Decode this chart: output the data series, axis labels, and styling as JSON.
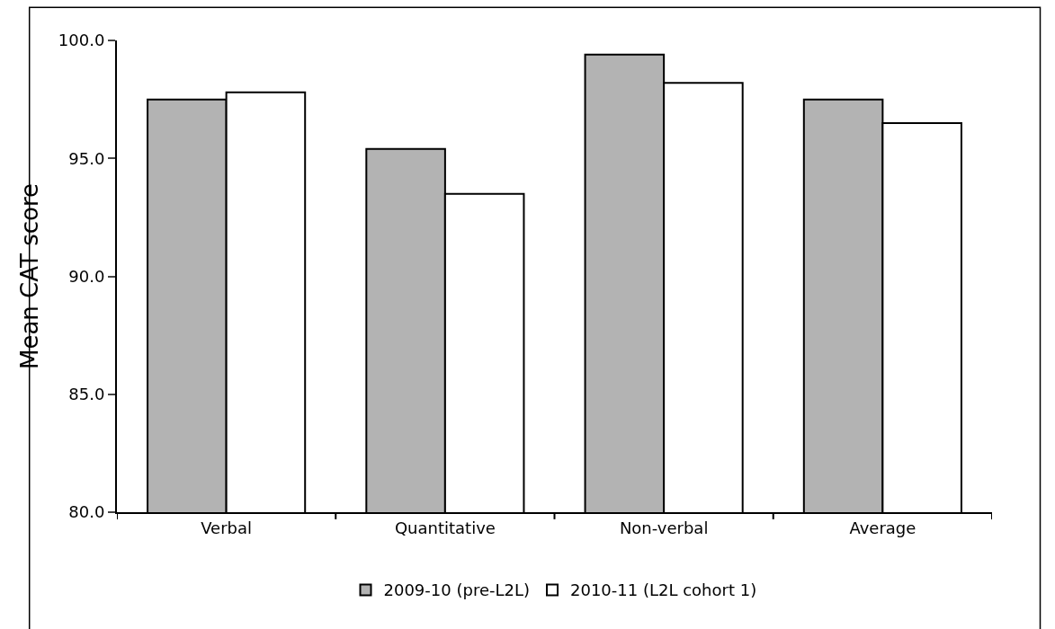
{
  "chart_data": {
    "type": "bar",
    "ylabel": "Mean CAT score",
    "categories": [
      "Verbal",
      "Quantitative",
      "Non-verbal",
      "Average"
    ],
    "series": [
      {
        "name": "2009-10 (pre-L2L)",
        "color": "#b3b3b3",
        "values": [
          97.5,
          95.4,
          99.4,
          97.5
        ]
      },
      {
        "name": "2010-11 (L2L cohort 1)",
        "color": "#ffffff",
        "values": [
          97.8,
          93.5,
          98.2,
          96.5
        ]
      }
    ],
    "ylim": [
      80,
      100
    ],
    "yticks": [
      {
        "value": 80,
        "label": "80.0"
      },
      {
        "value": 85,
        "label": "85.0"
      },
      {
        "value": 90,
        "label": "90.0"
      },
      {
        "value": 95,
        "label": "95.0"
      },
      {
        "value": 100,
        "label": "100.0"
      }
    ],
    "grid": false,
    "legend": "bottom"
  }
}
